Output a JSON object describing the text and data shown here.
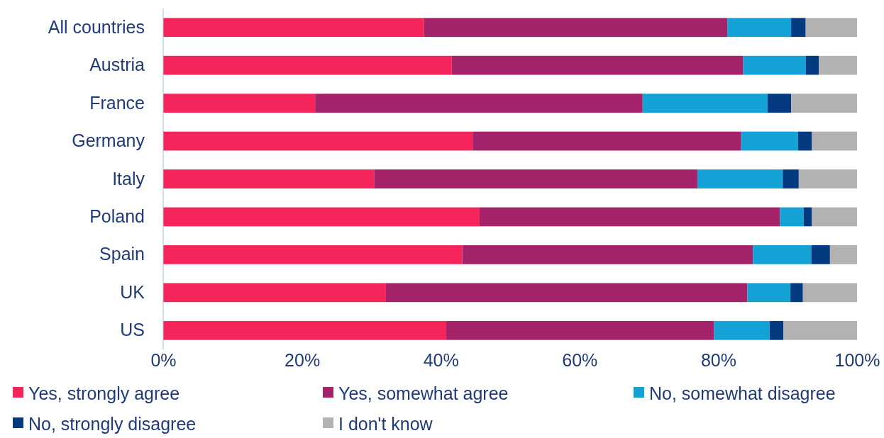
{
  "chart_data": {
    "type": "bar",
    "orientation": "horizontal",
    "stacked": true,
    "categories": [
      "All countries",
      "Austria",
      "France",
      "Germany",
      "Italy",
      "Poland",
      "Spain",
      "UK",
      "US"
    ],
    "series": [
      {
        "name": "Yes, strongly agree",
        "color": "#f5245a",
        "values": [
          37.6,
          41.6,
          21.9,
          44.6,
          30.4,
          45.6,
          43.1,
          32.1,
          40.8
        ]
      },
      {
        "name": "Yes, somewhat agree",
        "color": "#a4226a",
        "values": [
          43.7,
          42.0,
          47.2,
          38.7,
          46.6,
          43.3,
          41.9,
          52.1,
          38.6
        ]
      },
      {
        "name": "No, somewhat disagree",
        "color": "#13a1d6",
        "values": [
          9.2,
          9.0,
          18.0,
          8.2,
          12.3,
          3.4,
          8.4,
          6.2,
          8.0
        ]
      },
      {
        "name": "No, strongly disagree",
        "color": "#033a80",
        "values": [
          2.1,
          1.9,
          3.4,
          2.0,
          2.3,
          1.2,
          2.7,
          1.8,
          2.0
        ]
      },
      {
        "name": "I don't know",
        "color": "#b2b2b2",
        "values": [
          7.4,
          5.5,
          9.5,
          6.5,
          8.4,
          6.5,
          3.9,
          7.8,
          10.6
        ]
      }
    ],
    "xlim": [
      0,
      100
    ],
    "xticks": [
      {
        "value": 0,
        "label": "0%"
      },
      {
        "value": 20,
        "label": "20%"
      },
      {
        "value": 40,
        "label": "40%"
      },
      {
        "value": 60,
        "label": "60%"
      },
      {
        "value": 80,
        "label": "80%"
      },
      {
        "value": 100,
        "label": "100%"
      }
    ],
    "grid": false,
    "legend": "bottom"
  }
}
